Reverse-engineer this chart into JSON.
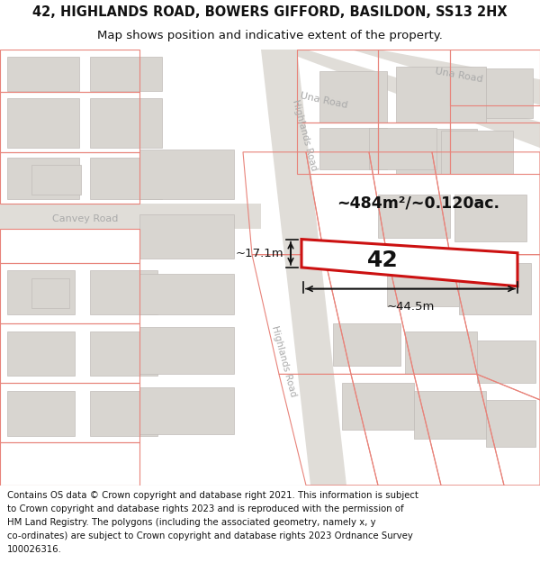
{
  "title_line1": "42, HIGHLANDS ROAD, BOWERS GIFFORD, BASILDON, SS13 2HX",
  "title_line2": "Map shows position and indicative extent of the property.",
  "footer_lines": [
    "Contains OS data © Crown copyright and database right 2021. This information is subject",
    "to Crown copyright and database rights 2023 and is reproduced with the permission of",
    "HM Land Registry. The polygons (including the associated geometry, namely x, y",
    "co-ordinates) are subject to Crown copyright and database rights 2023 Ordnance Survey",
    "100026316."
  ],
  "map_bg": "#ffffff",
  "road_color": "#e0ddd8",
  "building_fill": "#d8d5d0",
  "building_edge": "#c0bcb8",
  "plot_outline_color": "#e8837a",
  "highlight_color": "#cc1111",
  "property_label": "42",
  "area_text": "~484m²/~0.120ac.",
  "dim_width": "~44.5m",
  "dim_height": "~17.1m",
  "road_label_highlands_top": "Highlands Road",
  "road_label_highlands_bot": "Highlands Road",
  "road_label_una1": "Una Road",
  "road_label_una2": "Una Road",
  "road_label_canvey": "Canvey Road",
  "title_fontsize": 10.5,
  "subtitle_fontsize": 9.5,
  "footer_fontsize": 7.3,
  "footer_color": "#111111",
  "title_color": "#111111",
  "dim_color": "#111111",
  "road_label_color": "#aaaaaa",
  "label_color": "#111111"
}
